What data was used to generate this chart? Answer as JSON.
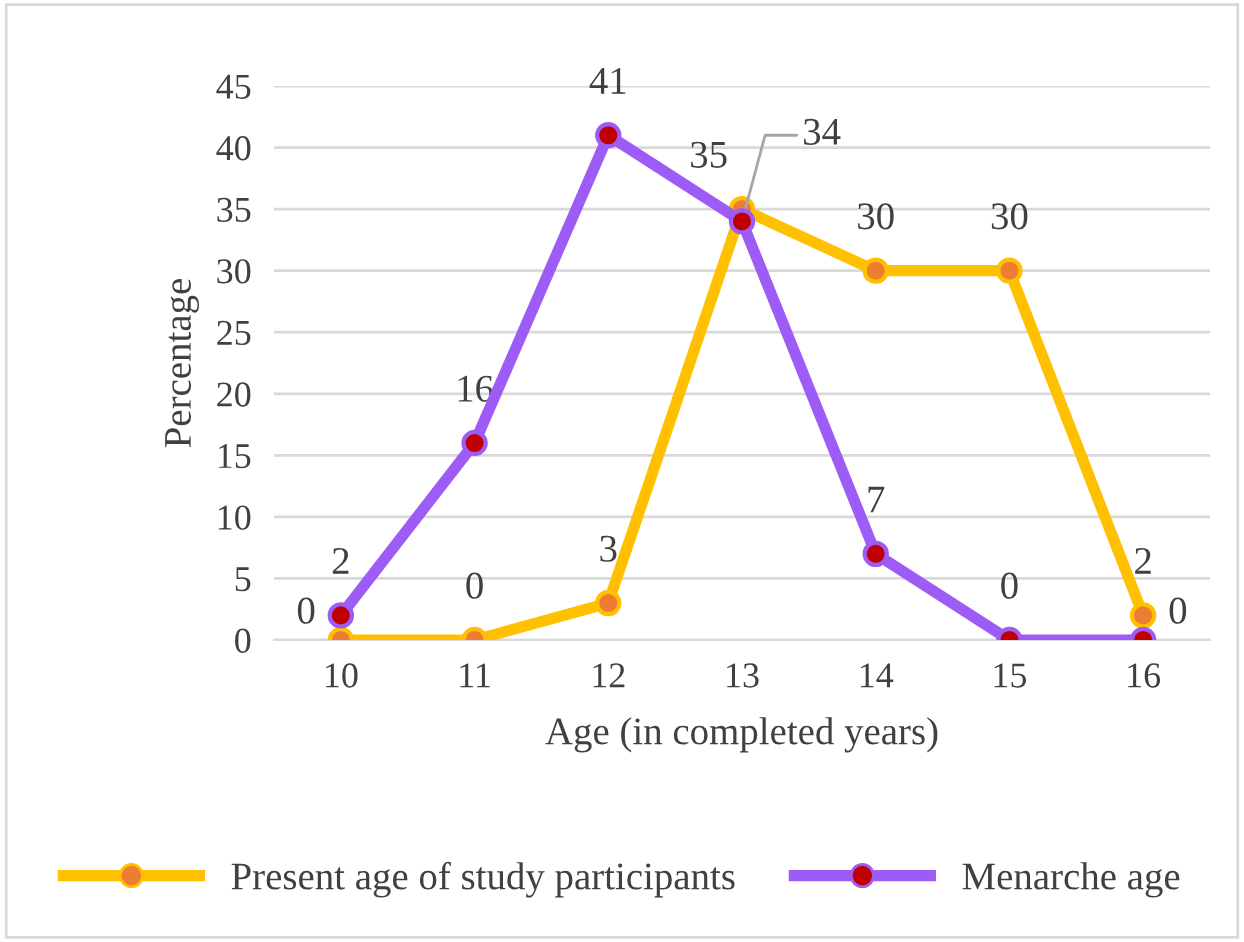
{
  "chart_data": {
    "type": "line",
    "xlabel": "Age (in completed years)",
    "ylabel": "Percentage",
    "categories": [
      "10",
      "11",
      "12",
      "13",
      "14",
      "15",
      "16"
    ],
    "series": [
      {
        "name": "Present age of study participants",
        "color": "#ffc000",
        "values": [
          0,
          0,
          3,
          35,
          30,
          30,
          2
        ],
        "value_labels": [
          "0",
          "0",
          "3",
          "35",
          "30",
          "30",
          "2"
        ]
      },
      {
        "name": "Menarche age",
        "color": "#9e5cf7",
        "values": [
          2,
          16,
          41,
          34,
          7,
          0,
          0
        ],
        "value_labels": [
          "2",
          "16",
          "41",
          "34",
          "7",
          "0",
          "0"
        ]
      }
    ],
    "ylim": [
      0,
      45
    ],
    "yticks": [
      0,
      5,
      10,
      15,
      20,
      25,
      30,
      35,
      40,
      45
    ],
    "grid": "y",
    "legend": "bottom",
    "marker": "circle",
    "line_style": "solid"
  }
}
